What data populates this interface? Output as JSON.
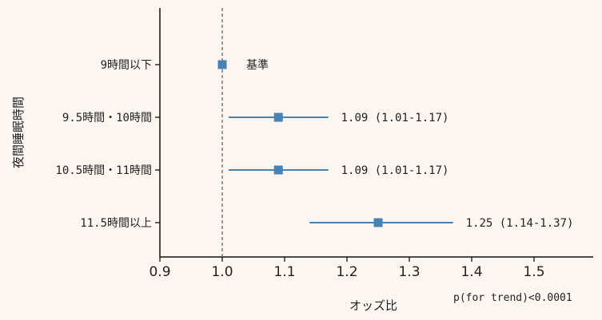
{
  "chart_data": {
    "type": "forest",
    "categories": [
      "9時間以下",
      "9.5時間・10時間",
      "10.5時間・11時間",
      "11.5時間以上"
    ],
    "estimates": [
      1.0,
      1.09,
      1.09,
      1.25
    ],
    "ci_lower": [
      null,
      1.01,
      1.01,
      1.14
    ],
    "ci_upper": [
      null,
      1.17,
      1.17,
      1.37
    ],
    "annotations": [
      "基準",
      "1.09 (1.01-1.17)",
      "1.09 (1.01-1.17)",
      "1.25 (1.14-1.37)"
    ],
    "reference_line": 1.0,
    "xlabel": "オッズ比",
    "ylabel": "夜間睡眠時間",
    "xticks": [
      "0.9",
      "1.0",
      "1.1",
      "1.2",
      "1.3",
      "1.4",
      "1.5"
    ],
    "xlim": [
      0.9,
      1.58
    ],
    "footnote": "p(for trend)<0.0001",
    "marker_color": "#4682b4",
    "reference_line_color": "#666666",
    "grid": false
  }
}
